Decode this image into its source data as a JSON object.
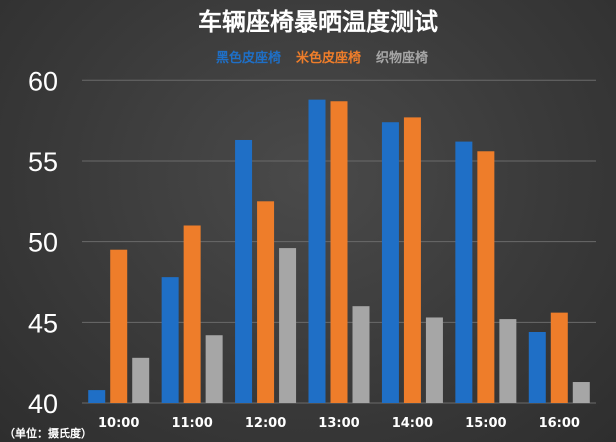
{
  "chart_data": {
    "type": "bar",
    "title": "车辆座椅暴晒温度测试",
    "unit_note": "（单位：摄氏度）",
    "categories": [
      "10:00",
      "11:00",
      "12:00",
      "13:00",
      "14:00",
      "15:00",
      "16:00"
    ],
    "series": [
      {
        "name": "黑色皮座椅",
        "color": "#1f6fc6",
        "values": [
          40.8,
          47.8,
          56.3,
          58.8,
          57.4,
          56.2,
          44.4
        ]
      },
      {
        "name": "米色皮座椅",
        "color": "#ee7d2a",
        "values": [
          49.5,
          51.0,
          52.5,
          58.7,
          57.7,
          55.6,
          45.6
        ]
      },
      {
        "name": "织物座椅",
        "color": "#a6a6a6",
        "values": [
          42.8,
          44.2,
          49.6,
          46.0,
          45.3,
          45.2,
          41.3
        ]
      }
    ],
    "yticks": [
      "40",
      "45",
      "50",
      "55",
      "60"
    ],
    "ylim": [
      40,
      62
    ],
    "grid": true,
    "legend_position": "top-right"
  },
  "colors": {
    "text": "#ffffff",
    "grid": "#6a6a6a"
  }
}
